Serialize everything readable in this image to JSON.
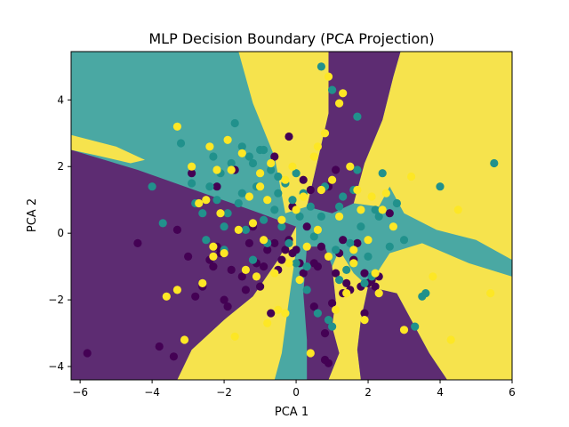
{
  "chart_data": {
    "type": "scatter",
    "title": "MLP Decision Boundary (PCA Projection)",
    "xlabel": "PCA 1",
    "ylabel": "PCA 2",
    "xlim": [
      -6.25,
      6.0
    ],
    "ylim": [
      -4.4,
      5.45
    ],
    "x_ticks": [
      -6,
      -4,
      -2,
      0,
      2,
      4,
      6
    ],
    "y_ticks": [
      -4,
      -2,
      0,
      2,
      4
    ],
    "x_tick_labels": [
      "−6",
      "−4",
      "−2",
      "0",
      "2",
      "4",
      "6"
    ],
    "y_tick_labels": [
      "−4",
      "−2",
      "0",
      "2",
      "4"
    ],
    "grid": false,
    "legend": "none",
    "colors": {
      "class_0": "#440154",
      "class_1": "#21918c",
      "class_2": "#fde725",
      "region_class_0": "#5d2c72",
      "region_class_1": "#4aa8a3",
      "region_class_2": "#f6e34d"
    },
    "decision_regions": {
      "description_source": "filled contour of classifier prediction",
      "background_class": 1,
      "regions": [
        {
          "class": 0,
          "polygon": [
            [
              -6.25,
              2.5
            ],
            [
              -4.4,
              1.9
            ],
            [
              -1.0,
              0.6
            ],
            [
              0.0,
              0.2
            ],
            [
              -0.5,
              -0.8
            ],
            [
              -1.2,
              -1.9
            ],
            [
              -2.0,
              -2.6
            ],
            [
              -2.9,
              -3.5
            ],
            [
              -3.3,
              -4.4
            ],
            [
              -6.25,
              -4.4
            ]
          ]
        },
        {
          "class": 2,
          "polygon": [
            [
              -2.9,
              -3.5
            ],
            [
              -2.0,
              -2.6
            ],
            [
              -1.2,
              -1.9
            ],
            [
              -0.5,
              -0.8
            ],
            [
              0.0,
              0.2
            ],
            [
              0.0,
              -0.5
            ],
            [
              -0.2,
              -2.0
            ],
            [
              -0.4,
              -3.6
            ],
            [
              -0.6,
              -4.4
            ],
            [
              -3.3,
              -4.4
            ]
          ]
        },
        {
          "class": 0,
          "polygon": [
            [
              0.3,
              -0.4
            ],
            [
              0.2,
              -1.8
            ],
            [
              0.3,
              -3.2
            ],
            [
              0.3,
              -4.4
            ],
            [
              0.9,
              -4.4
            ],
            [
              1.2,
              -3.6
            ],
            [
              1.0,
              -2.8
            ],
            [
              1.1,
              -2.0
            ],
            [
              1.0,
              -1.0
            ],
            [
              0.8,
              -0.4
            ]
          ]
        },
        {
          "class": 2,
          "polygon": [
            [
              0.9,
              -4.4
            ],
            [
              1.2,
              -3.6
            ],
            [
              1.0,
              -2.8
            ],
            [
              1.1,
              -2.0
            ],
            [
              1.0,
              -1.0
            ],
            [
              1.2,
              -0.5
            ],
            [
              1.6,
              -1.2
            ],
            [
              2.0,
              -1.6
            ],
            [
              1.8,
              -2.6
            ],
            [
              1.7,
              -3.5
            ],
            [
              1.8,
              -4.4
            ]
          ]
        },
        {
          "class": 0,
          "polygon": [
            [
              1.8,
              -4.4
            ],
            [
              1.7,
              -3.5
            ],
            [
              1.8,
              -2.6
            ],
            [
              2.0,
              -1.6
            ],
            [
              2.8,
              -1.8
            ],
            [
              3.3,
              -2.8
            ],
            [
              3.7,
              -3.6
            ],
            [
              4.2,
              -4.4
            ]
          ]
        },
        {
          "class": 2,
          "polygon": [
            [
              4.2,
              -4.4
            ],
            [
              3.7,
              -3.6
            ],
            [
              3.3,
              -2.8
            ],
            [
              2.8,
              -1.8
            ],
            [
              2.0,
              -1.6
            ],
            [
              2.6,
              -0.6
            ],
            [
              3.5,
              -0.3
            ],
            [
              4.8,
              -0.9
            ],
            [
              6.0,
              -1.3
            ],
            [
              6.0,
              -4.4
            ]
          ]
        },
        {
          "class": 2,
          "polygon": [
            [
              1.6,
              0.9
            ],
            [
              1.9,
              2.1
            ],
            [
              2.4,
              3.4
            ],
            [
              2.7,
              4.7
            ],
            [
              2.9,
              5.45
            ],
            [
              6.0,
              5.45
            ],
            [
              6.0,
              -0.8
            ],
            [
              5.0,
              -0.2
            ],
            [
              3.9,
              0.1
            ],
            [
              3.0,
              0.6
            ],
            [
              2.6,
              1.4
            ],
            [
              2.3,
              0.8
            ]
          ]
        },
        {
          "class": 0,
          "polygon": [
            [
              0.3,
              0.8
            ],
            [
              0.6,
              2.2
            ],
            [
              0.9,
              3.6
            ],
            [
              0.9,
              5.45
            ],
            [
              2.9,
              5.45
            ],
            [
              2.7,
              4.7
            ],
            [
              2.4,
              3.4
            ],
            [
              1.9,
              2.1
            ],
            [
              1.6,
              0.9
            ],
            [
              1.0,
              0.6
            ]
          ]
        },
        {
          "class": 2,
          "polygon": [
            [
              -0.3,
              0.6
            ],
            [
              -0.6,
              2.3
            ],
            [
              -1.2,
              3.9
            ],
            [
              -1.6,
              5.45
            ],
            [
              0.9,
              5.45
            ],
            [
              0.9,
              3.6
            ],
            [
              0.6,
              2.2
            ],
            [
              0.3,
              0.8
            ]
          ]
        },
        {
          "class": 2,
          "polygon": [
            [
              -6.25,
              2.95
            ],
            [
              -5.0,
              2.6
            ],
            [
              -4.2,
              2.2
            ],
            [
              -4.6,
              2.1
            ],
            [
              -5.6,
              2.35
            ],
            [
              -6.25,
              2.5
            ]
          ]
        }
      ]
    },
    "series": [
      {
        "class": 0,
        "x": [
          -5.8,
          -4.4,
          -3.8,
          -3.4,
          -3.3,
          -3.0,
          -2.9,
          -2.8,
          -2.6,
          -2.4,
          -2.3,
          -2.2,
          -2.1,
          -2.0,
          -1.9,
          -1.8,
          -1.6,
          -1.5,
          -1.4,
          -1.3,
          -1.2,
          -1.1,
          -1.0,
          -0.9,
          -0.8,
          -0.7,
          -0.6,
          -0.5,
          -0.4,
          -0.3,
          -0.2,
          -0.1,
          0.0,
          0.1,
          0.2,
          0.3,
          0.4,
          0.5,
          0.6,
          0.7,
          0.8,
          0.9,
          1.0,
          1.1,
          1.2,
          1.3,
          1.4,
          1.5,
          1.6,
          1.7,
          1.8,
          1.9,
          2.0,
          2.1,
          2.2,
          2.6,
          0.9,
          1.1,
          -0.2,
          -0.6,
          -1.7,
          -2.2,
          0.8,
          1.3,
          1.9,
          2.3,
          -0.1,
          0.2,
          0.5
        ],
        "y": [
          -3.6,
          -0.3,
          -3.4,
          -3.7,
          0.1,
          -0.7,
          1.8,
          -1.9,
          -1.6,
          -0.8,
          -1.0,
          -0.4,
          -0.6,
          -2.0,
          -2.2,
          -1.1,
          0.1,
          -1.3,
          -1.7,
          -0.3,
          0.2,
          -0.9,
          -1.6,
          -1.0,
          -0.5,
          -2.4,
          -0.3,
          -1.1,
          -0.8,
          -0.5,
          -0.2,
          -0.6,
          -0.5,
          -0.9,
          -1.2,
          0.2,
          1.3,
          -2.2,
          -1.0,
          -0.4,
          -3.0,
          -3.9,
          -2.1,
          -1.2,
          -0.6,
          -0.2,
          -1.5,
          -1.7,
          -0.8,
          -0.3,
          -1.6,
          -1.2,
          -1.5,
          -1.4,
          -1.6,
          0.6,
          1.4,
          1.9,
          2.9,
          2.3,
          1.9,
          1.4,
          -3.8,
          -1.8,
          -2.4,
          -1.3,
          0.8,
          1.6,
          -0.9
        ]
      },
      {
        "class": 1,
        "x": [
          -4.0,
          -3.7,
          -3.2,
          -2.9,
          -2.8,
          -2.6,
          -2.5,
          -2.4,
          -2.3,
          -2.2,
          -2.1,
          -2.0,
          -1.9,
          -1.8,
          -1.7,
          -1.6,
          -1.5,
          -1.4,
          -1.3,
          -1.2,
          -1.1,
          -1.0,
          -0.9,
          -0.8,
          -0.7,
          -0.6,
          -0.5,
          -0.4,
          -0.3,
          -0.2,
          -0.1,
          0.0,
          0.1,
          0.2,
          0.3,
          0.4,
          0.5,
          0.6,
          0.7,
          0.8,
          0.9,
          1.0,
          1.1,
          1.2,
          1.3,
          1.4,
          1.5,
          1.6,
          1.7,
          1.8,
          1.9,
          2.0,
          2.1,
          2.2,
          2.4,
          2.6,
          2.8,
          3.0,
          3.3,
          3.5,
          3.6,
          4.0,
          5.5,
          0.7,
          1.0,
          1.7,
          -1.5,
          -1.2,
          -0.5,
          0.3,
          1.2,
          2.3,
          -2.0,
          -0.9,
          0.0
        ],
        "y": [
          1.4,
          0.3,
          2.7,
          1.5,
          0.9,
          0.6,
          -0.2,
          1.4,
          2.3,
          1.0,
          1.8,
          0.2,
          0.6,
          2.1,
          3.3,
          0.9,
          1.2,
          0.1,
          2.3,
          -0.8,
          1.4,
          2.5,
          0.4,
          -0.3,
          1.9,
          0.7,
          1.2,
          0.2,
          1.5,
          -0.3,
          1.0,
          -0.9,
          0.5,
          1.2,
          -1.0,
          0.8,
          -0.1,
          -2.4,
          0.5,
          1.4,
          -2.6,
          -2.8,
          -0.5,
          0.8,
          1.1,
          -1.1,
          -0.3,
          1.3,
          1.9,
          0.2,
          -1.5,
          -0.7,
          -1.3,
          0.7,
          1.8,
          -0.4,
          0.9,
          -0.2,
          -2.8,
          -1.9,
          -1.8,
          1.4,
          2.1,
          5.0,
          4.3,
          3.5,
          2.6,
          2.1,
          1.7,
          -1.7,
          -1.4,
          0.5,
          -0.5,
          2.5,
          1.8
        ]
      },
      {
        "class": 2,
        "x": [
          -3.6,
          -3.3,
          -3.1,
          -2.9,
          -2.7,
          -2.6,
          -2.5,
          -2.4,
          -2.3,
          -2.2,
          -2.1,
          -2.0,
          -1.9,
          -1.8,
          -1.7,
          -1.6,
          -1.5,
          -1.4,
          -1.3,
          -1.2,
          -1.1,
          -1.0,
          -0.9,
          -0.8,
          -0.7,
          -0.6,
          -0.5,
          -0.4,
          -0.3,
          -0.2,
          -0.1,
          0.0,
          0.1,
          0.2,
          0.3,
          0.4,
          0.5,
          0.6,
          0.7,
          0.8,
          0.9,
          1.0,
          1.1,
          1.2,
          1.3,
          1.4,
          1.5,
          1.6,
          1.7,
          1.8,
          1.9,
          2.0,
          2.1,
          2.2,
          2.3,
          2.5,
          2.7,
          3.0,
          3.2,
          3.8,
          4.3,
          4.5,
          5.4,
          -3.3,
          -2.3,
          0.9,
          1.2,
          -0.8,
          -0.3,
          0.6,
          1.6,
          2.4,
          -1.0
        ],
        "y": [
          -1.9,
          3.2,
          -3.2,
          2.0,
          0.9,
          -1.5,
          1.0,
          2.6,
          -0.4,
          1.9,
          0.6,
          -0.6,
          2.8,
          1.9,
          -3.1,
          0.1,
          2.4,
          -1.1,
          1.1,
          0.3,
          -1.3,
          1.8,
          -0.2,
          1.0,
          2.1,
          -1.2,
          -2.3,
          0.4,
          1.6,
          -0.9,
          2.0,
          0.7,
          -1.4,
          1.1,
          -0.4,
          -3.6,
          2.3,
          0.1,
          1.3,
          3.0,
          -0.7,
          1.6,
          -2.3,
          0.5,
          4.2,
          -1.8,
          2.0,
          -0.5,
          1.3,
          0.7,
          -2.6,
          -0.2,
          1.1,
          -1.2,
          -1.8,
          1.2,
          0.2,
          -2.9,
          1.7,
          -1.3,
          -3.2,
          0.7,
          -1.8,
          -1.7,
          -0.7,
          4.7,
          3.9,
          -2.7,
          -2.4,
          2.6,
          -0.9,
          0.7,
          1.4
        ]
      }
    ]
  }
}
